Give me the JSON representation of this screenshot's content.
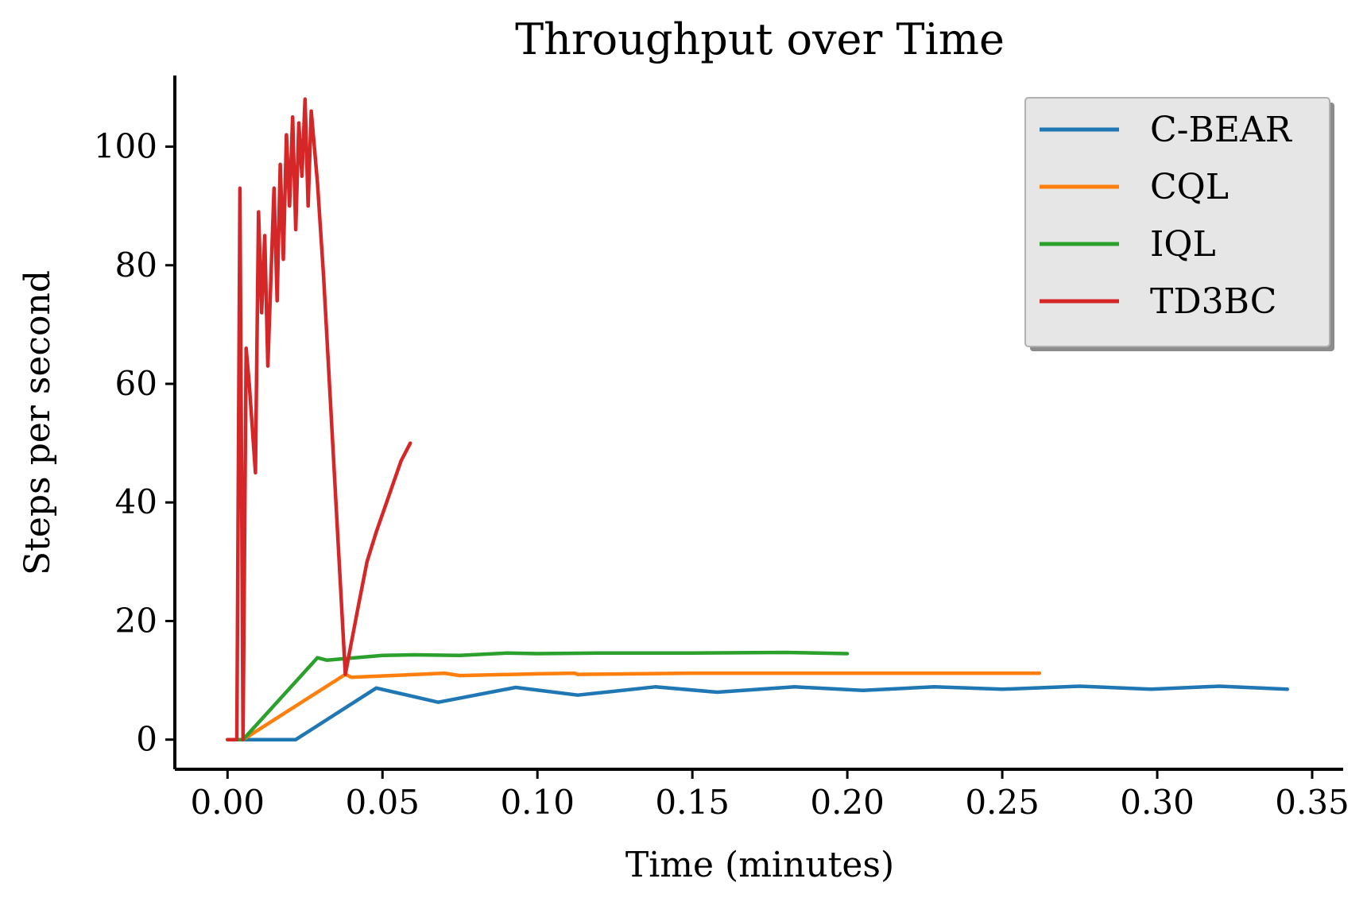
{
  "chart_data": {
    "type": "line",
    "title": "Throughput over Time",
    "xlabel": "Time (minutes)",
    "ylabel": "Steps per second",
    "xlim": [
      -0.017,
      0.36
    ],
    "ylim": [
      -5,
      112
    ],
    "x_ticks": [
      0.0,
      0.05,
      0.1,
      0.15,
      0.2,
      0.25,
      0.3,
      0.35
    ],
    "x_tick_labels": [
      "0.00",
      "0.05",
      "0.10",
      "0.15",
      "0.20",
      "0.25",
      "0.30",
      "0.35"
    ],
    "y_ticks": [
      0,
      20,
      40,
      60,
      80,
      100
    ],
    "y_tick_labels": [
      "0",
      "20",
      "40",
      "60",
      "80",
      "100"
    ],
    "grid": false,
    "legend_position": "top-right",
    "series": [
      {
        "name": "C-BEAR",
        "color": "#1f77b4",
        "x": [
          0.0,
          0.022,
          0.048,
          0.068,
          0.093,
          0.113,
          0.138,
          0.158,
          0.183,
          0.205,
          0.228,
          0.25,
          0.275,
          0.298,
          0.32,
          0.342
        ],
        "y": [
          0,
          0,
          8.7,
          6.3,
          8.8,
          7.5,
          8.9,
          8.0,
          8.9,
          8.3,
          8.9,
          8.5,
          9.0,
          8.5,
          9.0,
          8.5
        ]
      },
      {
        "name": "CQL",
        "color": "#ff7f0e",
        "x": [
          0.0,
          0.005,
          0.038,
          0.04,
          0.07,
          0.075,
          0.1,
          0.112,
          0.113,
          0.15,
          0.2,
          0.262
        ],
        "y": [
          0,
          0,
          11.0,
          10.5,
          11.2,
          10.8,
          11.1,
          11.2,
          11.0,
          11.2,
          11.2,
          11.2
        ]
      },
      {
        "name": "IQL",
        "color": "#2ca02c",
        "x": [
          0.0,
          0.005,
          0.029,
          0.032,
          0.05,
          0.06,
          0.075,
          0.09,
          0.1,
          0.12,
          0.15,
          0.18,
          0.2
        ],
        "y": [
          0,
          0,
          13.8,
          13.4,
          14.2,
          14.3,
          14.2,
          14.6,
          14.5,
          14.6,
          14.6,
          14.7,
          14.5
        ]
      },
      {
        "name": "TD3BC",
        "color": "#d62728",
        "x": [
          0.0,
          0.003,
          0.004,
          0.005,
          0.006,
          0.007,
          0.009,
          0.01,
          0.011,
          0.012,
          0.013,
          0.015,
          0.016,
          0.017,
          0.018,
          0.019,
          0.02,
          0.021,
          0.022,
          0.023,
          0.024,
          0.025,
          0.026,
          0.027,
          0.028,
          0.029,
          0.031,
          0.038,
          0.042,
          0.045,
          0.048,
          0.052,
          0.056,
          0.059
        ],
        "y": [
          0,
          0,
          93,
          0,
          66,
          60,
          45,
          89,
          72,
          85,
          63,
          93,
          74,
          97,
          81,
          102,
          90,
          105,
          86,
          104,
          95,
          108,
          90,
          106,
          100,
          94,
          78,
          11,
          22,
          30,
          35,
          41,
          47,
          50
        ]
      }
    ]
  }
}
